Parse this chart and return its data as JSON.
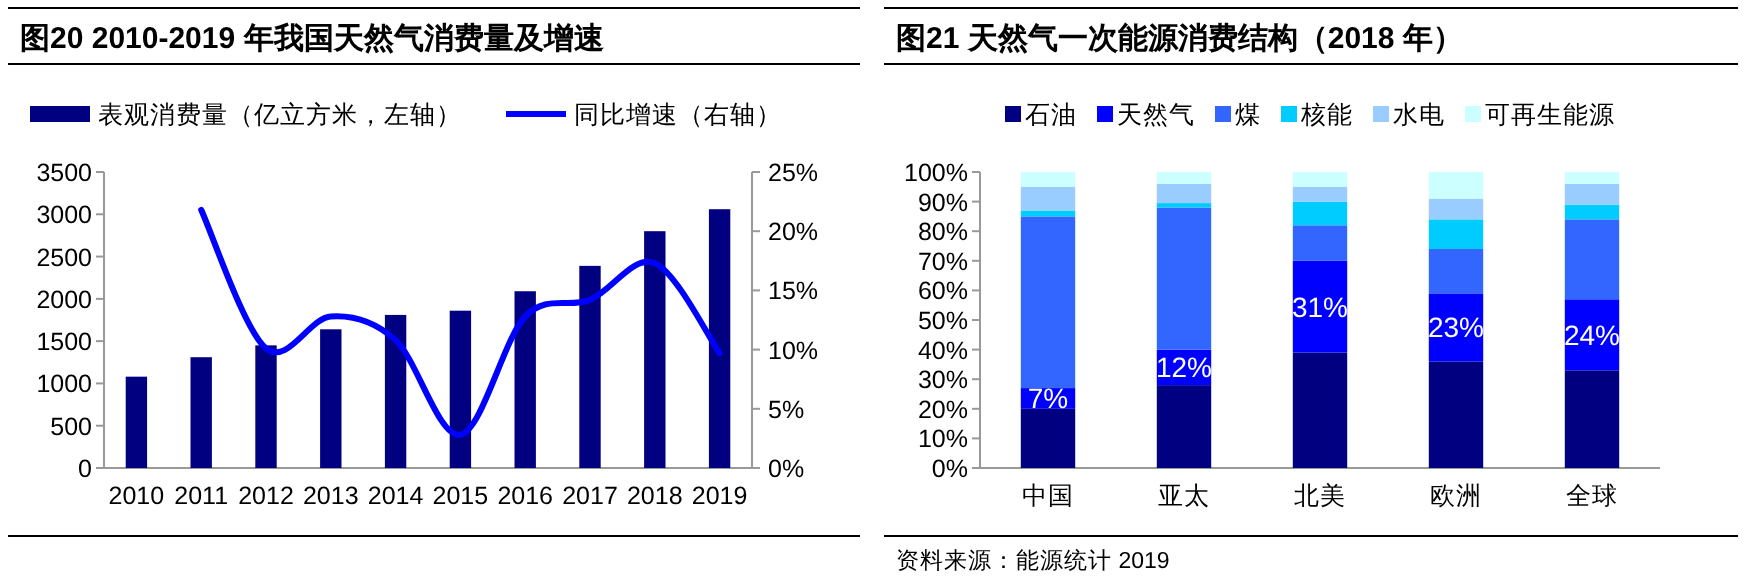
{
  "chart_data": [
    {
      "type": "bar",
      "title": "图20 2010-2019 年我国天然气消费量及增速",
      "legend": "top",
      "categories": [
        "2010",
        "2011",
        "2012",
        "2013",
        "2014",
        "2015",
        "2016",
        "2017",
        "2018",
        "2019"
      ],
      "series": [
        {
          "name": "表观消费量（亿立方米，左轴）",
          "type": "bar",
          "color": "#000080",
          "values": [
            1080,
            1310,
            1450,
            1640,
            1810,
            1860,
            2090,
            2390,
            2800,
            3060
          ]
        },
        {
          "name": "同比增速（右轴）",
          "type": "line",
          "axis": "y2",
          "color": "#0000ff",
          "values": [
            null,
            21.8,
            10.1,
            12.8,
            10.8,
            2.8,
            12.8,
            14.2,
            17.3,
            9.7
          ]
        }
      ],
      "ylim": [
        0,
        3500
      ],
      "yticks": [
        0,
        500,
        1000,
        1500,
        2000,
        2500,
        3000,
        3500
      ],
      "y2lim": [
        0,
        25
      ],
      "y2ticks": [
        {
          "value": 0,
          "label": "0%"
        },
        {
          "value": 5,
          "label": "5%"
        },
        {
          "value": 10,
          "label": "10%"
        },
        {
          "value": 15,
          "label": "15%"
        },
        {
          "value": 20,
          "label": "20%"
        },
        {
          "value": 25,
          "label": "25%"
        }
      ]
    },
    {
      "type": "bar",
      "title": "图21 天然气一次能源消费结构（2018 年）",
      "legend": "top",
      "stacked": true,
      "categories": [
        "中国",
        "亚太",
        "北美",
        "欧洲",
        "全球"
      ],
      "series": [
        {
          "name": "石油",
          "color": "#000080",
          "values": [
            20,
            28,
            39,
            36,
            33
          ]
        },
        {
          "name": "天然气",
          "color": "#0000ff",
          "values": [
            7,
            12,
            31,
            23,
            24
          ],
          "value_labels": [
            "7%",
            "12%",
            "31%",
            "23%",
            "24%"
          ]
        },
        {
          "name": "煤",
          "color": "#3366ff",
          "values": [
            58,
            48,
            12,
            15,
            27
          ]
        },
        {
          "name": "核能",
          "color": "#00ccff",
          "values": [
            2,
            1.5,
            8,
            10,
            5
          ]
        },
        {
          "name": "水电",
          "color": "#99ccff",
          "values": [
            8,
            6.5,
            5,
            7,
            7
          ]
        },
        {
          "name": "可再生能源",
          "color": "#ccffff",
          "values": [
            5,
            4,
            5,
            9,
            4
          ]
        }
      ],
      "ylim": [
        0,
        100
      ],
      "yticks": [
        {
          "value": 0,
          "label": "0%"
        },
        {
          "value": 10,
          "label": "10%"
        },
        {
          "value": 20,
          "label": "20%"
        },
        {
          "value": 30,
          "label": "30%"
        },
        {
          "value": 40,
          "label": "40%"
        },
        {
          "value": 50,
          "label": "50%"
        },
        {
          "value": 60,
          "label": "60%"
        },
        {
          "value": 70,
          "label": "70%"
        },
        {
          "value": 80,
          "label": "80%"
        },
        {
          "value": 90,
          "label": "90%"
        },
        {
          "value": 100,
          "label": "100%"
        }
      ],
      "annotations": [
        "资料来源：能源统计 2019"
      ]
    }
  ]
}
